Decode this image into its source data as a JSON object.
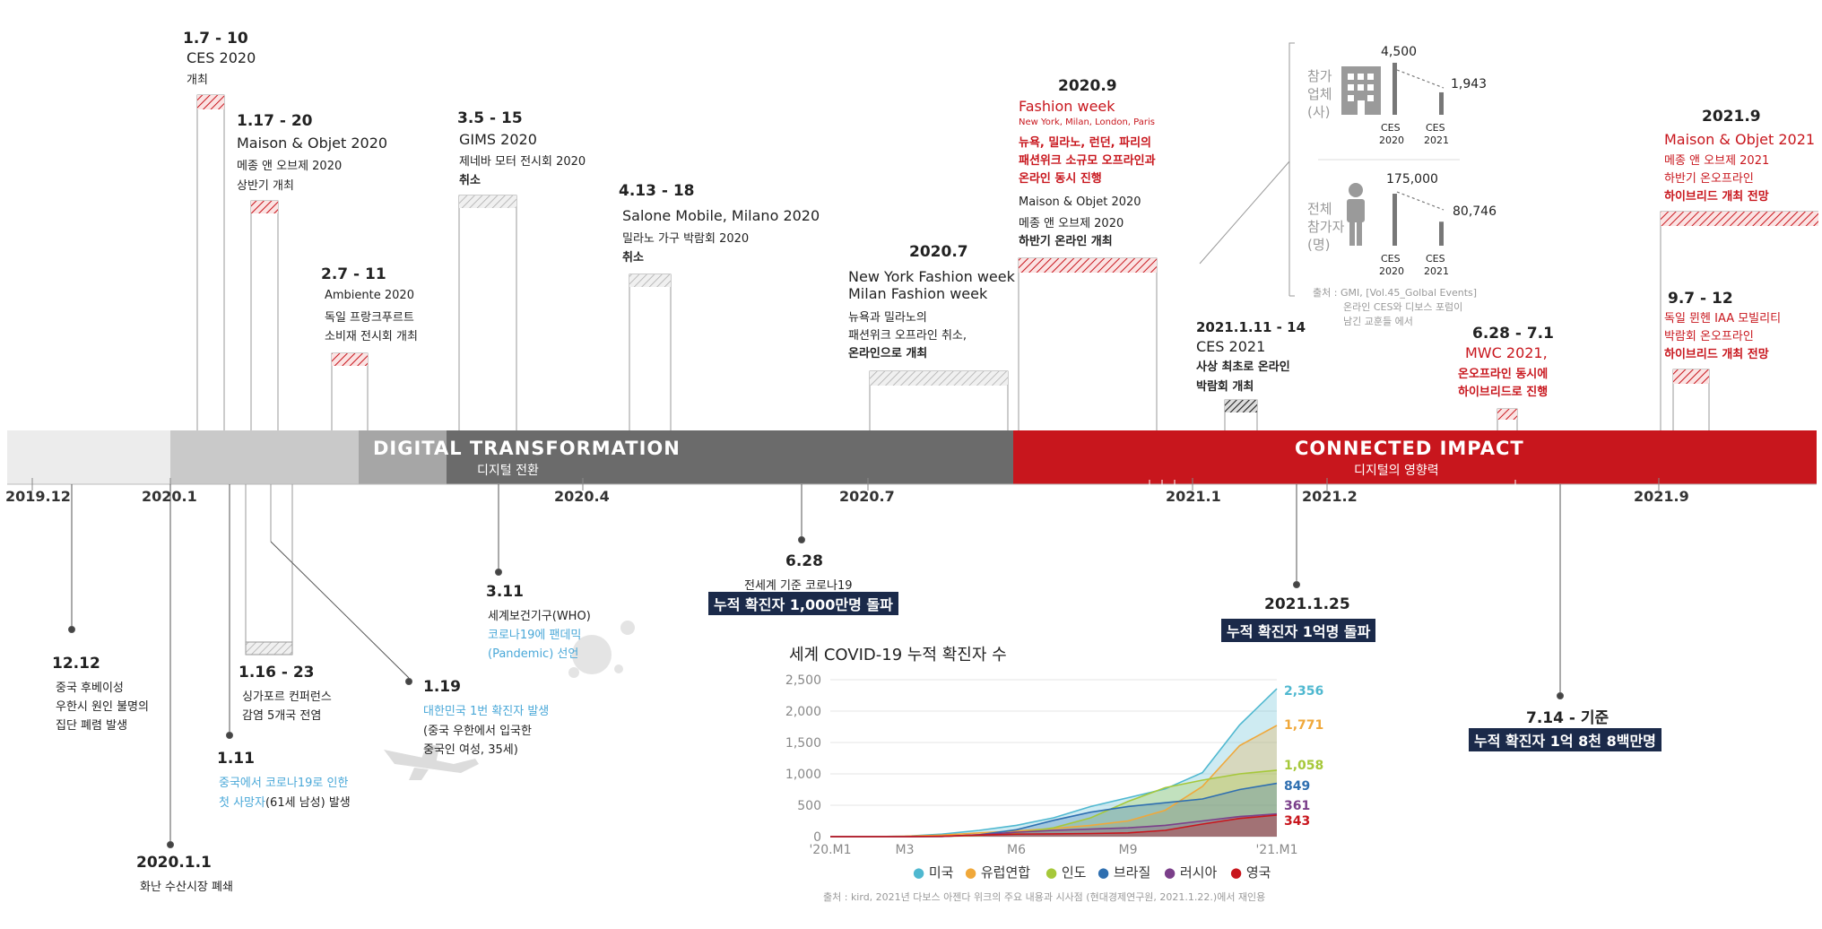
{
  "timeline": {
    "bands": [
      {
        "label": "DIGITAL TRANSFORMATION",
        "sub": "디지털 전환"
      },
      {
        "label": "CONNECTED IMPACT",
        "sub": "디지털의 영향력"
      }
    ],
    "dates": [
      "2019.12",
      "2020.1",
      "2020.4",
      "2020.7",
      "2021.1",
      "2021.2",
      "2021.9"
    ]
  },
  "events_top": {
    "ces2020": {
      "date": "1.7 - 10",
      "name": "CES 2020",
      "desc": "개최"
    },
    "maison2020": {
      "date": "1.17 - 20",
      "name": "Maison & Objet 2020",
      "desc1": "메종 앤 오브제 2020",
      "desc2": "상반기 개최"
    },
    "ambiente": {
      "date": "2.7 - 11",
      "name": "Ambiente 2020",
      "desc1": "독일 프랑크푸르트",
      "desc2": "소비재 전시회 개최"
    },
    "gims": {
      "date": "3.5 - 15",
      "name": "GIMS 2020",
      "desc1": "제네바 모터 전시회 2020",
      "desc2": "취소"
    },
    "salone": {
      "date": "4.13 - 18",
      "name": "Salone Mobile, Milano 2020",
      "desc1": "밀라노 가구 박람회 2020",
      "desc2": "취소"
    },
    "fashion_jul": {
      "date": "2020.7",
      "name1": "New York Fashion week",
      "name2": "Milan Fashion week",
      "desc1": "뉴욕과 밀라노의",
      "desc2": "패션위크 오프라인 취소,",
      "desc3": "온라인으로 개최"
    },
    "fashion_sep": {
      "date": "2020.9",
      "name": "Fashion week",
      "cities": "New York, Milan, London, Paris",
      "desc1": "뉴욕, 밀라노, 런던, 파리의",
      "desc2": "패션위크 소규모 오프라인과",
      "desc3": "온라인 동시 진행",
      "maison_name": "Maison & Objet 2020",
      "maison_desc1": "메종 앤 오브제 2020",
      "maison_desc2": "하반기 온라인 개최"
    },
    "ces2021": {
      "date": "2021.1.11 - 14",
      "name": "CES 2021",
      "desc1": "사상 최초로 온라인",
      "desc2": "박람회 개최"
    },
    "mwc": {
      "date": "6.28 - 7.1",
      "name": "MWC 2021,",
      "desc1": "온오프라인 동시에",
      "desc2": "하이브리드로 진행"
    },
    "maison2021": {
      "date": "2021.9",
      "name": "Maison & Objet 2021",
      "desc1": "메종 앤 오브제 2021",
      "desc2": "하반기 온오프라인",
      "desc3": "하이브리드 개최 전망"
    },
    "iaa": {
      "date": "9.7 - 12",
      "desc1": "독일 뮌헨 IAA 모빌리티",
      "desc2": "박람회 온오프라인",
      "desc3": "하이브리드 개최 전망"
    }
  },
  "ces_comparison": {
    "companies_label": [
      "참가",
      "업체",
      "(사)"
    ],
    "companies_values": [
      "4,500",
      "1,943"
    ],
    "attendees_label": [
      "전체",
      "참가자",
      "(명)"
    ],
    "attendees_values": [
      "175,000",
      "80,746"
    ],
    "bar_labels": [
      [
        "CES",
        "2020"
      ],
      [
        "CES",
        "2021"
      ]
    ],
    "companies_data": [
      4500,
      1943
    ],
    "attendees_data": [
      175000,
      80746
    ],
    "source": [
      "출처 : GMI, [Vol.45_Golbal Events]",
      "온라인 CES와 디보스 포럼이",
      "남긴 교훈들 에서"
    ]
  },
  "events_bottom": {
    "wuhan": {
      "date": "12.12",
      "desc1": "중국 후베이성",
      "desc2": "우한시 원인 불명의",
      "desc3": "집단 폐렴 발생"
    },
    "market": {
      "date": "2020.1.1",
      "desc": "화난 수산시장 폐쇄"
    },
    "death": {
      "date": "1.11",
      "desc1": "중국에서 코로나19로 인한",
      "desc2a": "첫 사망자",
      "desc2b": "(61세 남성) 발생"
    },
    "singapore": {
      "date": "1.16 - 23",
      "desc1": "싱가포르 컨퍼런스",
      "desc2": "감염 5개국 전염"
    },
    "korea": {
      "date": "1.19",
      "desc1": "대한민국 1번 확진자 발생",
      "desc2": "(중국 우한에서 입국한",
      "desc3": "중국인 여성, 35세)"
    },
    "who": {
      "date": "3.11",
      "desc1": "세계보건기구(WHO)",
      "desc2": "코로나19에 팬데믹",
      "desc3": "(Pandemic) 선언"
    },
    "tenmil": {
      "date": "6.28",
      "desc1": "전세계 기준 코로나19",
      "desc2": "누적 확진자 1,000만명 돌파"
    },
    "hundredmil": {
      "date": "2021.1.25",
      "desc": "누적 확진자 1억명 돌파"
    },
    "latest": {
      "date": "7.14 - 기준",
      "desc": "누적 확진자 1억 8천 8백만명"
    }
  },
  "chart_data": {
    "type": "area",
    "title": "세계 COVID-19 누적 확진자 수",
    "x_ticks": [
      "'20.M1",
      "M3",
      "M6",
      "M9",
      "'21.M1"
    ],
    "y_ticks": [
      "0",
      "500",
      "1,000",
      "1,500",
      "2,000",
      "2,500"
    ],
    "ylim": [
      0,
      2500
    ],
    "x": [
      0,
      1,
      2,
      3,
      4,
      5,
      6,
      7,
      8,
      9,
      10,
      11,
      12
    ],
    "series": [
      {
        "name": "미국",
        "color": "#4fb8d0",
        "final_label": "2,356",
        "values": [
          0,
          0,
          5,
          40,
          100,
          180,
          300,
          480,
          620,
          760,
          1020,
          1780,
          2356
        ]
      },
      {
        "name": "유럽연합",
        "color": "#f0a83a",
        "final_label": "1,771",
        "values": [
          0,
          0,
          5,
          25,
          60,
          90,
          130,
          180,
          250,
          420,
          800,
          1450,
          1771
        ]
      },
      {
        "name": "인도",
        "color": "#a6c83a",
        "final_label": "1,058",
        "values": [
          0,
          0,
          0,
          3,
          20,
          60,
          140,
          300,
          560,
          780,
          900,
          1000,
          1058
        ]
      },
      {
        "name": "브라질",
        "color": "#2f6fb0",
        "final_label": "849",
        "values": [
          0,
          0,
          0,
          3,
          30,
          110,
          260,
          390,
          480,
          540,
          600,
          750,
          849
        ]
      },
      {
        "name": "러시아",
        "color": "#7b3f8a",
        "final_label": "361",
        "values": [
          0,
          0,
          0,
          3,
          30,
          70,
          100,
          120,
          140,
          180,
          250,
          320,
          361
        ]
      },
      {
        "name": "영국",
        "color": "#c8161d",
        "final_label": "343",
        "values": [
          0,
          0,
          0,
          5,
          25,
          40,
          45,
          50,
          60,
          100,
          200,
          290,
          343
        ]
      }
    ],
    "source": "출처 : kird, 2021년 다보스 아젠다 위크의 주요 내용과 시사점 (현대경제연구원, 2021.1.22.)에서 재인용"
  }
}
